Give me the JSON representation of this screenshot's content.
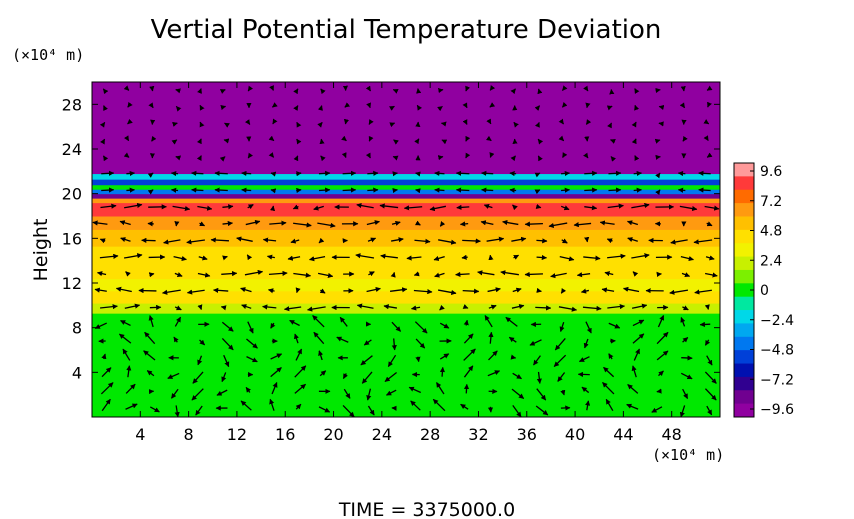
{
  "chart_data": {
    "type": "heatmap",
    "title": "Vertial Potential Temperature Deviation",
    "footer": "TIME = 3375000.0",
    "x": {
      "unit_label": "(×10⁴ m)",
      "range": [
        0,
        52
      ],
      "ticks": [
        4,
        8,
        12,
        16,
        20,
        24,
        28,
        32,
        36,
        40,
        44,
        48
      ]
    },
    "y": {
      "label": "Height",
      "unit_label": "(×10⁴ m)",
      "range": [
        0,
        30
      ],
      "ticks": [
        4,
        8,
        12,
        16,
        20,
        24,
        28
      ]
    },
    "colorbar": {
      "range": [
        -9.6,
        9.6
      ],
      "tick_values": [
        9.6,
        7.2,
        4.8,
        2.4,
        0,
        -2.4,
        -4.8,
        -7.2,
        -9.6
      ],
      "tick_labels": [
        "9.6",
        "7.2",
        "4.8",
        "2.4",
        "0",
        "−2.4",
        "−4.8",
        "−7.2",
        "−9.6"
      ],
      "colors": [
        "#ff9a9a",
        "#ff3a3a",
        "#ff6b00",
        "#ff9a10",
        "#ffc000",
        "#ffe000",
        "#f2f200",
        "#c8f000",
        "#7cf000",
        "#00e800",
        "#00e8a0",
        "#00d8e8",
        "#00a8f0",
        "#0078f0",
        "#0040d8",
        "#0010b0",
        "#300090",
        "#700090",
        "#9000a0"
      ]
    },
    "bands": [
      {
        "y": [
          0,
          9.3
        ],
        "value": 0.0
      },
      {
        "y": [
          9.3,
          10.2
        ],
        "value": 2.5
      },
      {
        "y": [
          10.2,
          11.3
        ],
        "value": 4.0
      },
      {
        "y": [
          11.3,
          12.4
        ],
        "value": 3.6
      },
      {
        "y": [
          12.4,
          15.3
        ],
        "value": 4.2
      },
      {
        "y": [
          15.3,
          16.8
        ],
        "value": 5.4
      },
      {
        "y": [
          16.8,
          18.0
        ],
        "value": 6.8
      },
      {
        "y": [
          18.0,
          19.2
        ],
        "value": 8.4
      },
      {
        "y": [
          19.2,
          19.6
        ],
        "value": 6.0
      },
      {
        "y": [
          19.6,
          20.0
        ],
        "value": -8.5
      },
      {
        "y": [
          20.0,
          20.4
        ],
        "value": -4.0
      },
      {
        "y": [
          20.4,
          20.8
        ],
        "value": 0.5
      },
      {
        "y": [
          20.8,
          21.3
        ],
        "value": -5.0
      },
      {
        "y": [
          21.3,
          21.8
        ],
        "value": -2.5
      },
      {
        "y": [
          21.8,
          30
        ],
        "value": -9.6
      }
    ],
    "vectors": {
      "x_spacing": 2.0,
      "y_spacing": 1.5,
      "description": "velocity arrows overlaid on the field"
    },
    "legend": "colorbar-right"
  }
}
